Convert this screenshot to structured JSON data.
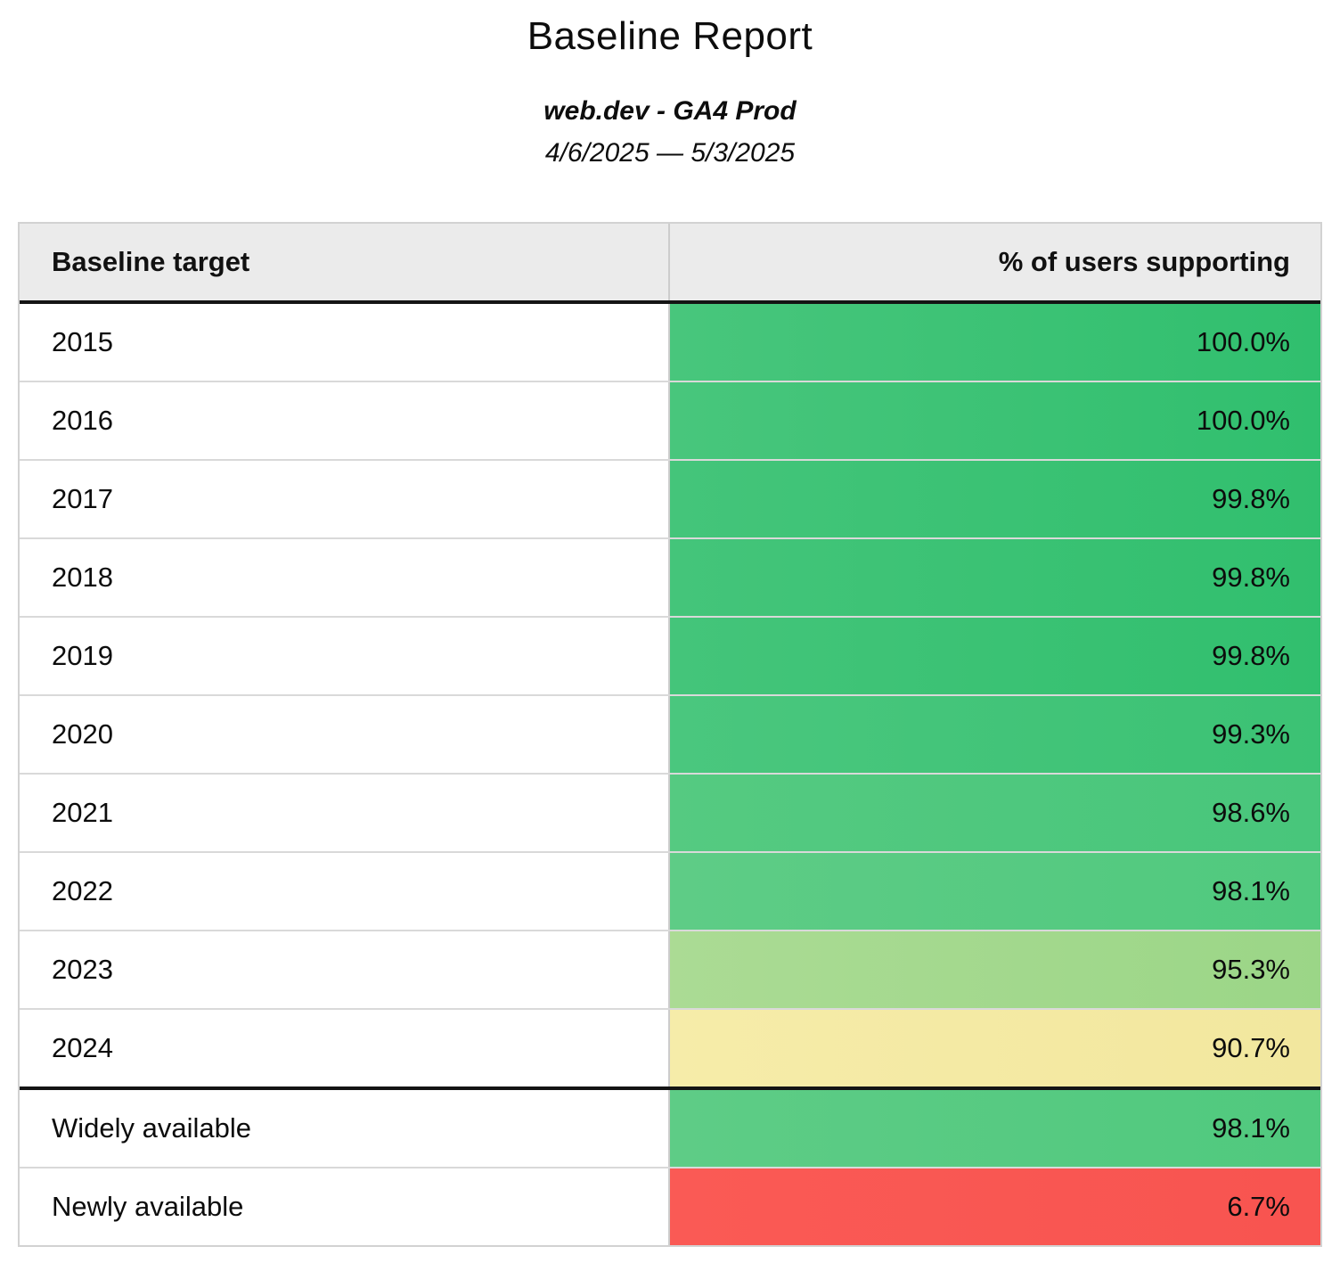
{
  "header": {
    "title": "Baseline Report",
    "subtitle": "web.dev - GA4 Prod",
    "date_range": "4/6/2025 — 5/3/2025"
  },
  "table": {
    "columns": [
      "Baseline target",
      "% of users supporting"
    ],
    "rows": [
      {
        "label": "2015",
        "value": "100.0%",
        "color_left": "#48c67c",
        "color_right": "#30bf6e",
        "thick_top": false
      },
      {
        "label": "2016",
        "value": "100.0%",
        "color_left": "#48c67c",
        "color_right": "#30bf6e",
        "thick_top": false
      },
      {
        "label": "2017",
        "value": "99.8%",
        "color_left": "#44c57a",
        "color_right": "#31bf6e",
        "thick_top": false
      },
      {
        "label": "2018",
        "value": "99.8%",
        "color_left": "#44c57a",
        "color_right": "#31bf6e",
        "thick_top": false
      },
      {
        "label": "2019",
        "value": "99.8%",
        "color_left": "#44c57a",
        "color_right": "#31bf6e",
        "thick_top": false
      },
      {
        "label": "2020",
        "value": "99.3%",
        "color_left": "#4ac77e",
        "color_right": "#3bc274",
        "thick_top": false
      },
      {
        "label": "2021",
        "value": "98.6%",
        "color_left": "#55ca81",
        "color_right": "#48c67b",
        "thick_top": false
      },
      {
        "label": "2022",
        "value": "98.1%",
        "color_left": "#5ecc86",
        "color_right": "#50c97e",
        "thick_top": false
      },
      {
        "label": "2023",
        "value": "95.3%",
        "color_left": "#abdb94",
        "color_right": "#9bd687",
        "thick_top": false
      },
      {
        "label": "2024",
        "value": "90.7%",
        "color_left": "#f6eca9",
        "color_right": "#f2e79e",
        "thick_top": false
      },
      {
        "label": "Widely available",
        "value": "98.1%",
        "color_left": "#5ecc86",
        "color_right": "#50c97e",
        "thick_top": true
      },
      {
        "label": "Newly available",
        "value": "6.7%",
        "color_left": "#fa5a55",
        "color_right": "#f85450",
        "thick_top": false
      }
    ]
  },
  "colors": {
    "header_bg": "#ebebeb",
    "thick_border": "#141414",
    "row_border": "#d9d9d9",
    "outer_border": "#d2d2d2",
    "good_green": "#30bf6e",
    "warn_yellow": "#f5e9a6",
    "bad_red": "#fa5a55"
  },
  "chart_data": {
    "type": "table",
    "title": "Baseline Report",
    "subtitle": "web.dev - GA4 Prod",
    "date_range": "4/6/2025 — 5/3/2025",
    "columns": [
      "Baseline target",
      "% of users supporting"
    ],
    "categories": [
      "2015",
      "2016",
      "2017",
      "2018",
      "2019",
      "2020",
      "2021",
      "2022",
      "2023",
      "2024",
      "Widely available",
      "Newly available"
    ],
    "values": [
      100.0,
      100.0,
      99.8,
      99.8,
      99.8,
      99.3,
      98.6,
      98.1,
      95.3,
      90.7,
      98.1,
      6.7
    ],
    "value_unit": "%",
    "color_scale": "red-yellow-green heatmap on value cells"
  }
}
